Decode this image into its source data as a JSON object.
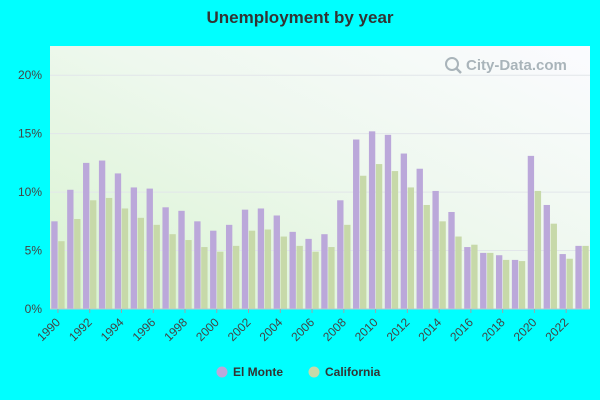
{
  "chart_data": {
    "type": "bar",
    "title": "Unemployment by year",
    "xlabel": "",
    "ylabel": "",
    "ylim": [
      0,
      22.5
    ],
    "y_ticks": [
      "0%",
      "5%",
      "10%",
      "15%",
      "20%"
    ],
    "y_tick_values": [
      0,
      5,
      10,
      15,
      20
    ],
    "x_tick_labels": [
      "1990",
      "1992",
      "1994",
      "1996",
      "1998",
      "2000",
      "2002",
      "2004",
      "2006",
      "2008",
      "2010",
      "2012",
      "2014",
      "2016",
      "2018",
      "2020",
      "2022"
    ],
    "categories": [
      1990,
      1991,
      1992,
      1993,
      1994,
      1995,
      1996,
      1997,
      1998,
      1999,
      2000,
      2001,
      2002,
      2003,
      2004,
      2005,
      2006,
      2007,
      2008,
      2009,
      2010,
      2011,
      2012,
      2013,
      2014,
      2015,
      2016,
      2017,
      2018,
      2019,
      2020,
      2021,
      2022,
      2023
    ],
    "series": [
      {
        "name": "El Monte",
        "color": "#bba8da",
        "values": [
          7.5,
          10.2,
          12.5,
          12.7,
          11.6,
          10.4,
          10.3,
          8.7,
          8.4,
          7.5,
          6.7,
          7.2,
          8.5,
          8.6,
          8.0,
          6.6,
          6.0,
          6.4,
          9.3,
          14.5,
          15.2,
          14.9,
          13.3,
          12.0,
          10.1,
          8.3,
          5.3,
          4.8,
          4.6,
          4.2,
          13.1,
          8.9,
          4.7,
          5.4
        ]
      },
      {
        "name": "California",
        "color": "#c7d9a9",
        "values": [
          5.8,
          7.7,
          9.3,
          9.5,
          8.6,
          7.8,
          7.2,
          6.4,
          5.9,
          5.3,
          4.9,
          5.4,
          6.7,
          6.8,
          6.2,
          5.4,
          4.9,
          5.3,
          7.2,
          11.4,
          12.4,
          11.8,
          10.4,
          8.9,
          7.5,
          6.2,
          5.5,
          4.8,
          4.2,
          4.1,
          10.1,
          7.3,
          4.3,
          5.4
        ]
      }
    ],
    "legend": {
      "position": "bottom",
      "entries": [
        "El Monte",
        "California"
      ]
    },
    "grid": true,
    "watermark": "City-Data.com",
    "watermark_icon": "magnifier-icon"
  }
}
